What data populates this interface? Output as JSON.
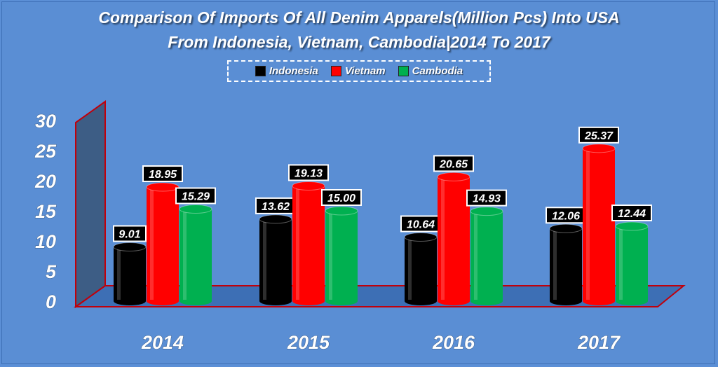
{
  "chart_data": {
    "type": "bar",
    "title_line1": "Comparison Of Imports Of All Denim Apparels(Million Pcs) Into USA",
    "title_line2": "From Indonesia, Vietnam, Cambodia|2014 To 2017",
    "categories": [
      "2014",
      "2015",
      "2016",
      "2017"
    ],
    "series": [
      {
        "name": "Indonesia",
        "color": "#000000",
        "values": [
          9.01,
          13.62,
          10.64,
          12.06
        ],
        "labels": [
          "9.01",
          "13.62",
          "10.64",
          "12.06"
        ]
      },
      {
        "name": "Vietnam",
        "color": "#ff0000",
        "values": [
          18.95,
          19.13,
          20.65,
          25.37
        ],
        "labels": [
          "18.95",
          "19.13",
          "20.65",
          "25.37"
        ]
      },
      {
        "name": "Cambodia",
        "color": "#00b050",
        "values": [
          15.29,
          15.0,
          14.93,
          12.44
        ],
        "labels": [
          "15.29",
          "15.00",
          "14.93",
          "12.44"
        ]
      }
    ],
    "yticks": [
      "0",
      "5",
      "10",
      "15",
      "20",
      "25",
      "30"
    ],
    "ylim": [
      0,
      30
    ],
    "legend_position": "top",
    "grid": false,
    "colors": {
      "background": "#5a8ed4",
      "wall": "#3d5d85",
      "floor": "#3d6fb5",
      "edge": "#c0000b"
    }
  }
}
